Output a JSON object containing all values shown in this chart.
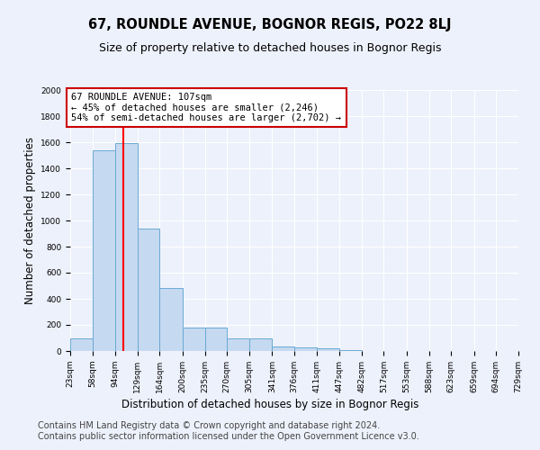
{
  "title": "67, ROUNDLE AVENUE, BOGNOR REGIS, PO22 8LJ",
  "subtitle": "Size of property relative to detached houses in Bognor Regis",
  "xlabel": "Distribution of detached houses by size in Bognor Regis",
  "ylabel": "Number of detached properties",
  "bin_edges": [
    23,
    58,
    94,
    129,
    164,
    200,
    235,
    270,
    305,
    341,
    376,
    411,
    447,
    482,
    517,
    553,
    588,
    623,
    659,
    694,
    729
  ],
  "bar_heights": [
    100,
    1540,
    1590,
    940,
    480,
    180,
    178,
    100,
    95,
    35,
    30,
    20,
    5,
    3,
    2,
    1,
    1,
    0,
    0,
    0
  ],
  "bar_color": "#c5d9f0",
  "bar_edge_color": "#6aaad4",
  "red_line_x": 107,
  "annotation_text": "67 ROUNDLE AVENUE: 107sqm\n← 45% of detached houses are smaller (2,246)\n54% of semi-detached houses are larger (2,702) →",
  "annotation_box_color": "#ffffff",
  "annotation_box_edge_color": "#cc0000",
  "ylim": [
    0,
    2000
  ],
  "yticks": [
    0,
    200,
    400,
    600,
    800,
    1000,
    1200,
    1400,
    1600,
    1800,
    2000
  ],
  "footer_line1": "Contains HM Land Registry data © Crown copyright and database right 2024.",
  "footer_line2": "Contains public sector information licensed under the Open Government Licence v3.0.",
  "bg_color": "#edf1fb",
  "grid_color": "#ffffff",
  "title_fontsize": 10.5,
  "subtitle_fontsize": 9,
  "xlabel_fontsize": 8.5,
  "ylabel_fontsize": 8.5,
  "tick_fontsize": 6.5,
  "footer_fontsize": 7,
  "annot_fontsize": 7.5
}
